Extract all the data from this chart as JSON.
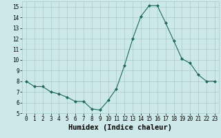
{
  "x": [
    0,
    1,
    2,
    3,
    4,
    5,
    6,
    7,
    8,
    9,
    10,
    11,
    12,
    13,
    14,
    15,
    16,
    17,
    18,
    19,
    20,
    21,
    22,
    23
  ],
  "y": [
    8.0,
    7.5,
    7.5,
    7.0,
    6.8,
    6.5,
    6.1,
    6.1,
    5.4,
    5.3,
    6.2,
    7.3,
    9.5,
    12.0,
    14.1,
    15.1,
    15.1,
    13.5,
    11.8,
    10.1,
    9.7,
    8.6,
    8.0,
    8.0
  ],
  "xlim": [
    -0.5,
    23.5
  ],
  "ylim": [
    5,
    15.5
  ],
  "yticks": [
    5,
    6,
    7,
    8,
    9,
    10,
    11,
    12,
    13,
    14,
    15
  ],
  "xticks": [
    0,
    1,
    2,
    3,
    4,
    5,
    6,
    7,
    8,
    9,
    10,
    11,
    12,
    13,
    14,
    15,
    16,
    17,
    18,
    19,
    20,
    21,
    22,
    23
  ],
  "xlabel": "Humidex (Indice chaleur)",
  "line_color": "#1a6b5a",
  "marker": "D",
  "marker_size": 2.0,
  "bg_color": "#cce8e8",
  "grid_color": "#aacccc",
  "tick_fontsize": 5.5,
  "xlabel_fontsize": 7.5,
  "xlabel_fontweight": "bold"
}
